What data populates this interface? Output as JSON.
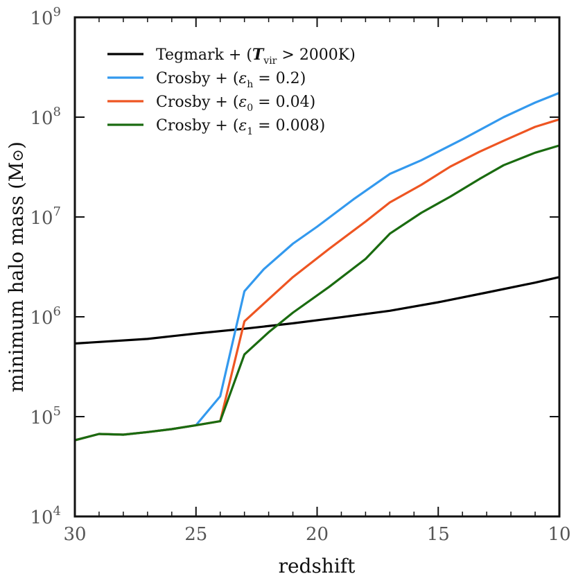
{
  "chart_data": {
    "type": "line",
    "title": "",
    "xlabel": "redshift",
    "ylabel": "minimum halo mass (M⊙)",
    "ylabel_parts": {
      "main": "minimum halo mass (M",
      "sym": "⊙",
      "close": ")"
    },
    "xlim": [
      30,
      10
    ],
    "ylim": [
      10000,
      1000000000
    ],
    "yscale": "log",
    "grid": false,
    "legend_position": "top-left",
    "x_ticks": [
      {
        "value": 30,
        "label": "30"
      },
      {
        "value": 25,
        "label": "25"
      },
      {
        "value": 20,
        "label": "20"
      },
      {
        "value": 15,
        "label": "15"
      },
      {
        "value": 10,
        "label": "10"
      }
    ],
    "y_ticks": [
      {
        "value": 10000,
        "base": "10",
        "exp": "4"
      },
      {
        "value": 100000,
        "base": "10",
        "exp": "5"
      },
      {
        "value": 1000000,
        "base": "10",
        "exp": "6"
      },
      {
        "value": 10000000,
        "base": "10",
        "exp": "7"
      },
      {
        "value": 100000000,
        "base": "10",
        "exp": "8"
      },
      {
        "value": 1000000000,
        "base": "10",
        "exp": "9"
      }
    ],
    "series": [
      {
        "key": "tegmark",
        "name": "Tegmark + (Tvir > 2000K)",
        "legend": {
          "prefix": "Tegmark + ",
          "open": "(",
          "sym": "T",
          "sub": "vir",
          "rel": " > ",
          "val": "2000K",
          "close": ")"
        },
        "color": "#000000",
        "x": [
          30,
          27,
          25,
          23,
          21,
          19,
          17,
          15,
          13,
          11,
          10
        ],
        "y": [
          540000,
          600000,
          680000,
          760000,
          860000,
          990000,
          1150000,
          1400000,
          1750000,
          2200000,
          2500000
        ]
      },
      {
        "key": "crosby_h",
        "name": "Crosby + (εh = 0.2)",
        "legend": {
          "prefix": "Crosby + ",
          "open": "(",
          "sym": "ε",
          "sub": "h",
          "rel": " = ",
          "val": "0.2",
          "close": ")"
        },
        "color": "#3399ee",
        "x": [
          30,
          29,
          28,
          27,
          26,
          25,
          24,
          23,
          22.2,
          21,
          20,
          18.5,
          17,
          15.7,
          14,
          12.3,
          11,
          10
        ],
        "y": [
          58000,
          67000,
          66000,
          70000,
          75000,
          82000,
          160000,
          1800000,
          3000000,
          5400000,
          8000000,
          15000000,
          27000000,
          37000000,
          60000000,
          100000000,
          140000000,
          175000000
        ]
      },
      {
        "key": "crosby_0",
        "name": "Crosby + (ε0 = 0.04)",
        "legend": {
          "prefix": "Crosby + ",
          "open": "(",
          "sym": "ε",
          "sub": "0",
          "rel": " = ",
          "val": "0.04",
          "close": ")"
        },
        "color": "#ee5522",
        "x": [
          30,
          29,
          28,
          27,
          26,
          25,
          24,
          23,
          22,
          21,
          19.5,
          18,
          17,
          15.7,
          14.5,
          13.3,
          12.3,
          11,
          10
        ],
        "y": [
          58000,
          67000,
          66000,
          70000,
          75000,
          82000,
          90000,
          900000,
          1500000,
          2500000,
          4800000,
          9000000,
          14000000,
          21000000,
          32000000,
          45000000,
          58000000,
          80000000,
          95000000
        ]
      },
      {
        "key": "crosby_1",
        "name": "Crosby + (ε1 = 0.008)",
        "legend": {
          "prefix": "Crosby + ",
          "open": "(",
          "sym": "ε",
          "sub": "1",
          "rel": " = ",
          "val": "0.008",
          "close": ")"
        },
        "color": "#1a6b10",
        "x": [
          30,
          29,
          28,
          27,
          26,
          25,
          24,
          23,
          22,
          21,
          19.5,
          18,
          17,
          15.7,
          14.5,
          13.3,
          12.3,
          11,
          10
        ],
        "y": [
          58000,
          67000,
          66000,
          70000,
          75000,
          82000,
          90000,
          420000,
          700000,
          1100000,
          2000000,
          3800000,
          6800000,
          11000000,
          16000000,
          24000000,
          33000000,
          44000000,
          52000000
        ]
      }
    ]
  }
}
